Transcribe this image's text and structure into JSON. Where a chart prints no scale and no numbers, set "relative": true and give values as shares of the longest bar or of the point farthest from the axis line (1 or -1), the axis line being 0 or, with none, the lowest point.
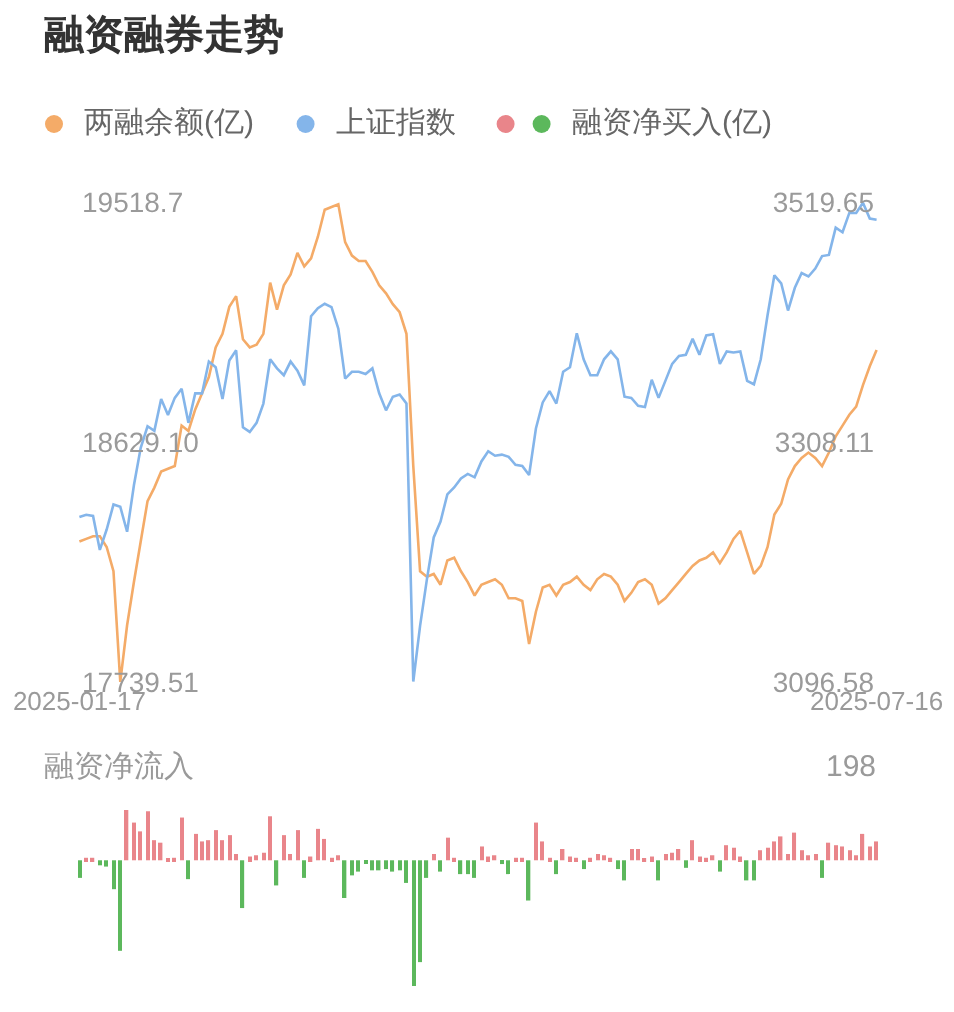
{
  "chart_data": [
    {
      "type": "line",
      "title": "融资融券走势",
      "legend": "top",
      "categories": [
        "2025-01-17",
        null,
        null,
        null,
        null,
        null,
        null,
        null,
        null,
        null,
        null,
        null,
        null,
        null,
        null,
        null,
        null,
        null,
        null,
        null,
        null,
        null,
        null,
        null,
        null,
        null,
        null,
        null,
        null,
        null,
        null,
        null,
        null,
        null,
        null,
        null,
        null,
        null,
        null,
        null,
        null,
        null,
        null,
        null,
        null,
        null,
        null,
        null,
        null,
        null,
        null,
        null,
        null,
        null,
        null,
        null,
        null,
        null,
        null,
        null,
        null,
        null,
        null,
        null,
        null,
        null,
        null,
        null,
        null,
        null,
        null,
        null,
        null,
        null,
        null,
        null,
        null,
        null,
        null,
        null,
        null,
        null,
        null,
        null,
        null,
        null,
        null,
        null,
        null,
        null,
        null,
        null,
        null,
        null,
        null,
        null,
        null,
        null,
        null,
        null,
        null,
        null,
        null,
        null,
        null,
        null,
        null,
        null,
        null,
        null,
        null,
        null,
        null,
        null,
        null,
        null,
        null,
        "2025-07-16"
      ],
      "ylim": [
        17739.51,
        19518.7
      ],
      "yticks": [
        17739.51,
        {
          "value": 18629.1,
          "label": "18629.10"
        },
        19518.7
      ],
      "y2lim": [
        3096.58,
        3519.65
      ],
      "y2ticks": [
        3096.58,
        3308.11,
        3519.65
      ],
      "series": [
        {
          "name": "两融余额(亿)",
          "color": "#f4ab68",
          "values": [
            18260,
            18270,
            18280,
            18280,
            18240,
            18150,
            17740,
            17950,
            18110,
            18260,
            18410,
            18460,
            18520,
            18530,
            18540,
            18690,
            18670,
            18750,
            18810,
            18870,
            18980,
            19030,
            19130,
            19170,
            19010,
            18980,
            18990,
            19030,
            19220,
            19120,
            19210,
            19250,
            19330,
            19280,
            19310,
            19390,
            19490,
            19500,
            19510,
            19370,
            19320,
            19300,
            19300,
            19260,
            19210,
            19180,
            19140,
            19110,
            19030,
            18540,
            18150,
            18130,
            18140,
            18100,
            18190,
            18200,
            18150,
            18110,
            18060,
            18100,
            18110,
            18120,
            18100,
            18050,
            18050,
            18040,
            17880,
            18000,
            18090,
            18100,
            18060,
            18100,
            18110,
            18130,
            18100,
            18080,
            18120,
            18140,
            18130,
            18100,
            18040,
            18070,
            18110,
            18120,
            18100,
            18030,
            18050,
            18080,
            18110,
            18140,
            18170,
            18190,
            18200,
            18220,
            18180,
            18220,
            18270,
            18300,
            18220,
            18140,
            18170,
            18240,
            18360,
            18400,
            18490,
            18540,
            18570,
            18590,
            18570,
            18540,
            18590,
            18650,
            18690,
            18730,
            18760,
            18840,
            18910,
            18970
          ]
        },
        {
          "name": "上证指数",
          "color": "#84b5ea",
          "axis": "y2",
          "values": [
            3242,
            3244,
            3243,
            3213,
            3231,
            3253,
            3251,
            3229,
            3270,
            3303,
            3322,
            3318,
            3346,
            3332,
            3347,
            3355,
            3325,
            3351,
            3351,
            3379,
            3374,
            3346,
            3380,
            3389,
            3321,
            3317,
            3325,
            3342,
            3381,
            3373,
            3367,
            3379,
            3371,
            3358,
            3419,
            3426,
            3430,
            3427,
            3408,
            3364,
            3370,
            3370,
            3368,
            3373,
            3351,
            3336,
            3348,
            3350,
            3342,
            3097,
            3146,
            3187,
            3224,
            3238,
            3262,
            3268,
            3276,
            3280,
            3277,
            3291,
            3300,
            3296,
            3297,
            3295,
            3288,
            3287,
            3279,
            3320,
            3343,
            3353,
            3342,
            3370,
            3374,
            3404,
            3381,
            3367,
            3367,
            3381,
            3388,
            3381,
            3348,
            3347,
            3340,
            3339,
            3363,
            3347,
            3362,
            3377,
            3384,
            3385,
            3399,
            3385,
            3402,
            3403,
            3377,
            3388,
            3387,
            3388,
            3362,
            3359,
            3381,
            3420,
            3455,
            3448,
            3424,
            3444,
            3457,
            3454,
            3461,
            3472,
            3473,
            3497,
            3493,
            3510,
            3510,
            3519,
            3505,
            3504
          ]
        }
      ]
    },
    {
      "type": "bar",
      "title": "融资净流入",
      "relative": true,
      "legend": "top",
      "tick_labels": false,
      "annotations": [
        "198"
      ],
      "categories": [
        "2025-01-17",
        null,
        null,
        null,
        null,
        null,
        null,
        null,
        null,
        null,
        null,
        null,
        null,
        null,
        null,
        null,
        null,
        null,
        null,
        null,
        null,
        null,
        null,
        null,
        null,
        null,
        null,
        null,
        null,
        null,
        null,
        null,
        null,
        null,
        null,
        null,
        null,
        null,
        null,
        null,
        null,
        null,
        null,
        null,
        null,
        null,
        null,
        null,
        null,
        null,
        null,
        null,
        null,
        null,
        null,
        null,
        null,
        null,
        null,
        null,
        null,
        null,
        null,
        null,
        null,
        null,
        null,
        null,
        null,
        null,
        null,
        null,
        null,
        null,
        null,
        null,
        null,
        null,
        null,
        null,
        null,
        null,
        null,
        null,
        null,
        null,
        null,
        null,
        null,
        null,
        null,
        null,
        null,
        null,
        null,
        null,
        null,
        null,
        null,
        null,
        null,
        null,
        null,
        null,
        null,
        null,
        null,
        null,
        null,
        null,
        null,
        null,
        null,
        null,
        null,
        null,
        null,
        "2025-07-16"
      ],
      "series": [
        {
          "name": "融资净买入(亿)",
          "values": [
            -0.14,
            0.02,
            0.02,
            -0.04,
            -0.05,
            -0.23,
            -0.72,
            0.4,
            0.3,
            0.23,
            0.39,
            0.16,
            0.14,
            0.01,
            0.02,
            0.34,
            -0.15,
            0.21,
            0.15,
            0.16,
            0.24,
            0.16,
            0.2,
            0.05,
            -0.38,
            0.03,
            0.04,
            0.06,
            0.35,
            -0.2,
            0.2,
            0.05,
            0.24,
            -0.14,
            0.03,
            0.25,
            0.17,
            0.02,
            0.04,
            -0.3,
            -0.12,
            -0.09,
            -0.02,
            -0.08,
            -0.08,
            -0.07,
            -0.09,
            -0.08,
            -0.18,
            -1,
            -0.81,
            -0.14,
            0.05,
            -0.09,
            0.18,
            0.02,
            -0.11,
            -0.11,
            -0.14,
            0.11,
            0.03,
            0.04,
            -0.03,
            -0.11,
            0.02,
            0.02,
            -0.32,
            0.3,
            0.15,
            0.02,
            -0.11,
            0.09,
            0.03,
            0.02,
            -0.07,
            0.02,
            0.05,
            0.04,
            0.02,
            -0.07,
            -0.16,
            0.09,
            0.09,
            0.01,
            0.03,
            -0.16,
            0.05,
            0.06,
            0.09,
            -0.06,
            0.16,
            0.03,
            0.02,
            0.04,
            -0.09,
            0.12,
            0.1,
            0.03,
            -0.16,
            -0.16,
            0.08,
            0.1,
            0.15,
            0.19,
            0.05,
            0.22,
            0.08,
            0.04,
            0.05,
            -0.14,
            0.14,
            0.12,
            0.11,
            0.08,
            0.04,
            0.21,
            0.11,
            0.15
          ],
          "colors": [
            "#5cb85c",
            "#e9858a",
            "#e9858a",
            "#5cb85c",
            "#5cb85c",
            "#5cb85c",
            "#5cb85c",
            "#e9858a",
            "#e9858a",
            "#e9858a",
            "#e9858a",
            "#e9858a",
            "#e9858a",
            "#e9858a",
            "#e9858a",
            "#e9858a",
            "#5cb85c",
            "#e9858a",
            "#e9858a",
            "#e9858a",
            "#e9858a",
            "#e9858a",
            "#e9858a",
            "#e9858a",
            "#5cb85c",
            "#e9858a",
            "#e9858a",
            "#e9858a",
            "#e9858a",
            "#5cb85c",
            "#e9858a",
            "#e9858a",
            "#e9858a",
            "#5cb85c",
            "#e9858a",
            "#e9858a",
            "#e9858a",
            "#e9858a",
            "#e9858a",
            "#5cb85c",
            "#5cb85c",
            "#5cb85c",
            "#5cb85c",
            "#5cb85c",
            "#5cb85c",
            "#5cb85c",
            "#5cb85c",
            "#5cb85c",
            "#5cb85c",
            "#5cb85c",
            "#5cb85c",
            "#5cb85c",
            "#e9858a",
            "#5cb85c",
            "#e9858a",
            "#e9858a",
            "#5cb85c",
            "#5cb85c",
            "#5cb85c",
            "#e9858a",
            "#e9858a",
            "#e9858a",
            "#5cb85c",
            "#5cb85c",
            "#e9858a",
            "#e9858a",
            "#5cb85c",
            "#e9858a",
            "#e9858a",
            "#e9858a",
            "#5cb85c",
            "#e9858a",
            "#e9858a",
            "#e9858a",
            "#5cb85c",
            "#e9858a",
            "#e9858a",
            "#e9858a",
            "#e9858a",
            "#5cb85c",
            "#5cb85c",
            "#e9858a",
            "#e9858a",
            "#e9858a",
            "#e9858a",
            "#5cb85c",
            "#e9858a",
            "#e9858a",
            "#e9858a",
            "#5cb85c",
            "#e9858a",
            "#e9858a",
            "#e9858a",
            "#e9858a",
            "#5cb85c",
            "#e9858a",
            "#e9858a",
            "#e9858a",
            "#5cb85c",
            "#5cb85c",
            "#e9858a",
            "#e9858a",
            "#e9858a",
            "#e9858a",
            "#e9858a",
            "#e9858a",
            "#e9858a",
            "#e9858a",
            "#e9858a",
            "#5cb85c",
            "#e9858a",
            "#e9858a",
            "#e9858a",
            "#e9858a",
            "#e9858a",
            "#e9858a",
            "#e9858a",
            "#e9858a"
          ]
        }
      ]
    }
  ]
}
